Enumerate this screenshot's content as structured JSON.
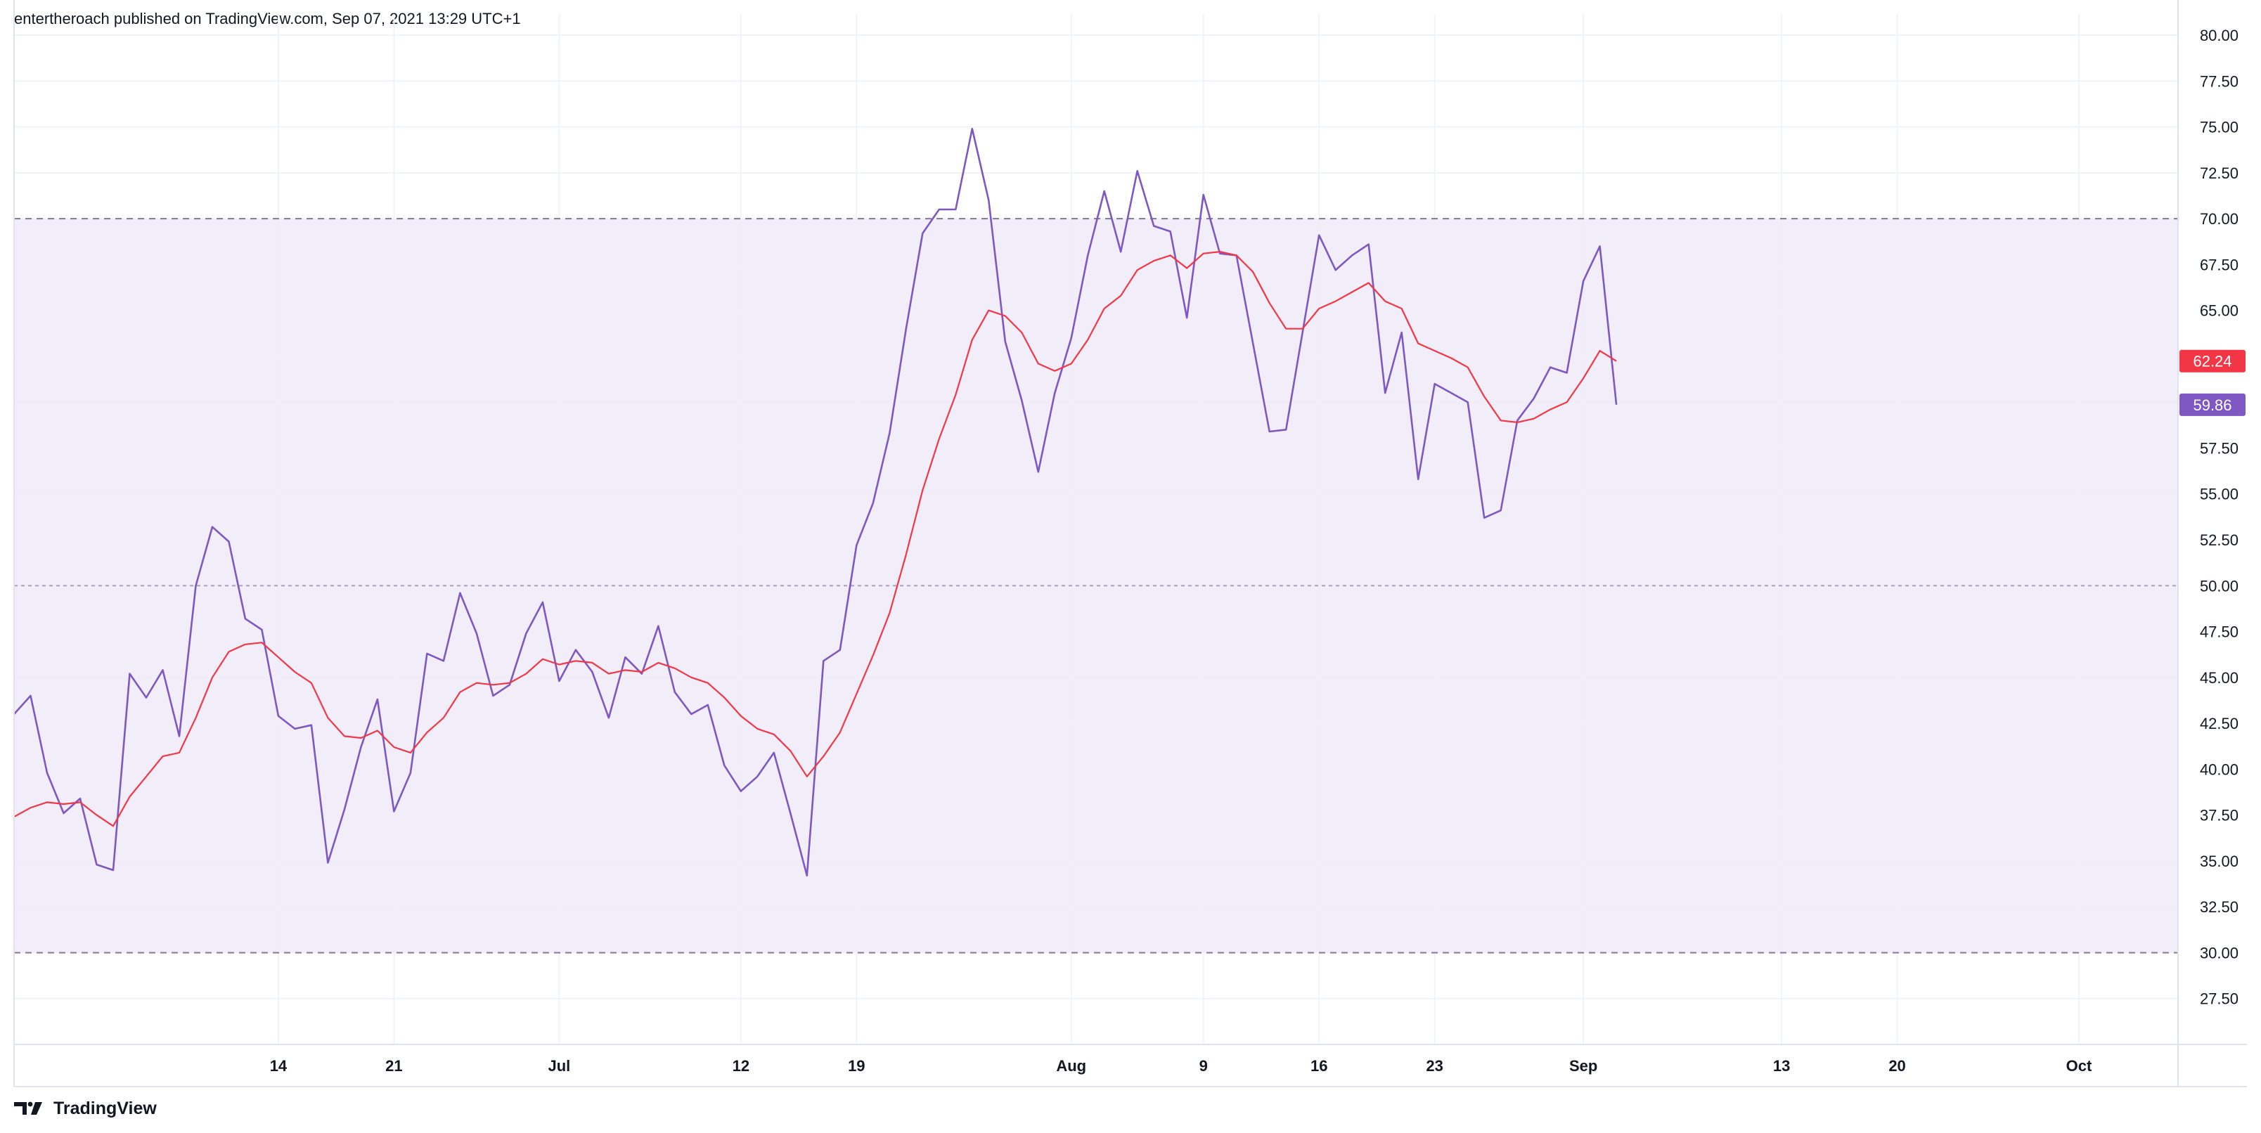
{
  "header": {
    "text": "entertheroach published on TradingView.com, Sep 07, 2021 13:29 UTC+1"
  },
  "footer": {
    "brand": "TradingView",
    "logo_icon": "tradingview-logo-icon"
  },
  "colors": {
    "rsi_line": "#7e57c2",
    "ma_line": "#f23645",
    "band_fill": "#f0ebf8",
    "band_line": "#7e6f94",
    "grid": "#f0f3fa",
    "axis": "#e0e3eb",
    "badge_rsi": "#7e57c2",
    "badge_ma": "#f23645"
  },
  "chart_data": {
    "type": "line",
    "title": "",
    "xlabel": "",
    "ylabel": "",
    "ylim": [
      25.0,
      80.0
    ],
    "y_ticks": [
      "27.50",
      "30.00",
      "32.50",
      "35.00",
      "37.50",
      "40.00",
      "42.50",
      "45.00",
      "47.50",
      "50.00",
      "52.50",
      "55.00",
      "57.50",
      "60.00",
      "62.50",
      "65.00",
      "67.50",
      "70.00",
      "72.50",
      "75.00",
      "77.50",
      "80.00"
    ],
    "x_ticks": [
      {
        "label": "14",
        "date": "2021-06-14"
      },
      {
        "label": "21",
        "date": "2021-06-21"
      },
      {
        "label": "Jul",
        "date": "2021-07-01"
      },
      {
        "label": "12",
        "date": "2021-07-12"
      },
      {
        "label": "19",
        "date": "2021-07-19"
      },
      {
        "label": "Aug",
        "date": "2021-08-01"
      },
      {
        "label": "9",
        "date": "2021-08-09"
      },
      {
        "label": "16",
        "date": "2021-08-16"
      },
      {
        "label": "23",
        "date": "2021-08-23"
      },
      {
        "label": "Sep",
        "date": "2021-09-01"
      },
      {
        "label": "13",
        "date": "2021-09-13"
      },
      {
        "label": "20",
        "date": "2021-09-20"
      },
      {
        "label": "Oct",
        "date": "2021-10-01"
      }
    ],
    "x_range": [
      "2021-05-29",
      "2021-10-07"
    ],
    "bands": {
      "upper": 70,
      "middle": 50,
      "lower": 30
    },
    "grid": true,
    "series": [
      {
        "kind": "rsi",
        "color": "#7e57c2",
        "last_value_label": "59.86",
        "points": [
          [
            "2021-05-29",
            43.0
          ],
          [
            "2021-05-30",
            44.0
          ],
          [
            "2021-05-31",
            39.8
          ],
          [
            "2021-06-01",
            37.6
          ],
          [
            "2021-06-02",
            38.4
          ],
          [
            "2021-06-03",
            34.8
          ],
          [
            "2021-06-04",
            34.5
          ],
          [
            "2021-06-05",
            45.2
          ],
          [
            "2021-06-06",
            43.9
          ],
          [
            "2021-06-07",
            45.4
          ],
          [
            "2021-06-08",
            41.8
          ],
          [
            "2021-06-09",
            50.0
          ],
          [
            "2021-06-10",
            53.2
          ],
          [
            "2021-06-11",
            52.4
          ],
          [
            "2021-06-12",
            48.2
          ],
          [
            "2021-06-13",
            47.6
          ],
          [
            "2021-06-14",
            42.9
          ],
          [
            "2021-06-15",
            42.2
          ],
          [
            "2021-06-16",
            42.4
          ],
          [
            "2021-06-17",
            34.9
          ],
          [
            "2021-06-18",
            37.8
          ],
          [
            "2021-06-19",
            41.2
          ],
          [
            "2021-06-20",
            43.8
          ],
          [
            "2021-06-21",
            37.7
          ],
          [
            "2021-06-22",
            39.8
          ],
          [
            "2021-06-23",
            46.3
          ],
          [
            "2021-06-24",
            45.9
          ],
          [
            "2021-06-25",
            49.6
          ],
          [
            "2021-06-26",
            47.4
          ],
          [
            "2021-06-27",
            44.0
          ],
          [
            "2021-06-28",
            44.6
          ],
          [
            "2021-06-29",
            47.4
          ],
          [
            "2021-06-30",
            49.1
          ],
          [
            "2021-07-01",
            44.8
          ],
          [
            "2021-07-02",
            46.5
          ],
          [
            "2021-07-03",
            45.3
          ],
          [
            "2021-07-04",
            42.8
          ],
          [
            "2021-07-05",
            46.1
          ],
          [
            "2021-07-06",
            45.2
          ],
          [
            "2021-07-07",
            47.8
          ],
          [
            "2021-07-08",
            44.2
          ],
          [
            "2021-07-09",
            43.0
          ],
          [
            "2021-07-10",
            43.5
          ],
          [
            "2021-07-11",
            40.2
          ],
          [
            "2021-07-12",
            38.8
          ],
          [
            "2021-07-13",
            39.6
          ],
          [
            "2021-07-14",
            40.9
          ],
          [
            "2021-07-15",
            37.6
          ],
          [
            "2021-07-16",
            34.2
          ],
          [
            "2021-07-17",
            45.9
          ],
          [
            "2021-07-18",
            46.5
          ],
          [
            "2021-07-19",
            52.2
          ],
          [
            "2021-07-20",
            54.5
          ],
          [
            "2021-07-21",
            58.3
          ],
          [
            "2021-07-22",
            64.0
          ],
          [
            "2021-07-23",
            69.2
          ],
          [
            "2021-07-24",
            70.5
          ],
          [
            "2021-07-25",
            70.5
          ],
          [
            "2021-07-26",
            74.9
          ],
          [
            "2021-07-27",
            71.0
          ],
          [
            "2021-07-28",
            63.3
          ],
          [
            "2021-07-29",
            60.1
          ],
          [
            "2021-07-30",
            56.2
          ],
          [
            "2021-07-31",
            60.5
          ],
          [
            "2021-08-01",
            63.5
          ],
          [
            "2021-08-02",
            68.0
          ],
          [
            "2021-08-03",
            71.5
          ],
          [
            "2021-08-04",
            68.2
          ],
          [
            "2021-08-05",
            72.6
          ],
          [
            "2021-08-06",
            69.6
          ],
          [
            "2021-08-07",
            69.3
          ],
          [
            "2021-08-08",
            64.6
          ],
          [
            "2021-08-09",
            71.3
          ],
          [
            "2021-08-10",
            68.1
          ],
          [
            "2021-08-11",
            68.0
          ],
          [
            "2021-08-12",
            63.2
          ],
          [
            "2021-08-13",
            58.4
          ],
          [
            "2021-08-14",
            58.5
          ],
          [
            "2021-08-15",
            63.8
          ],
          [
            "2021-08-16",
            69.1
          ],
          [
            "2021-08-17",
            67.2
          ],
          [
            "2021-08-18",
            68.0
          ],
          [
            "2021-08-19",
            68.6
          ],
          [
            "2021-08-20",
            60.5
          ],
          [
            "2021-08-21",
            63.8
          ],
          [
            "2021-08-22",
            55.8
          ],
          [
            "2021-08-23",
            61.0
          ],
          [
            "2021-08-24",
            60.5
          ],
          [
            "2021-08-25",
            60.0
          ],
          [
            "2021-08-26",
            53.7
          ],
          [
            "2021-08-27",
            54.1
          ],
          [
            "2021-08-28",
            59.0
          ],
          [
            "2021-08-29",
            60.2
          ],
          [
            "2021-08-30",
            61.9
          ],
          [
            "2021-08-31",
            61.6
          ],
          [
            "2021-09-01",
            66.6
          ],
          [
            "2021-09-02",
            68.5
          ],
          [
            "2021-09-03",
            59.86
          ]
        ]
      },
      {
        "kind": "rsi_moving_average",
        "color": "#f23645",
        "last_value_label": "62.24",
        "points": [
          [
            "2021-05-29",
            37.4
          ],
          [
            "2021-05-30",
            37.9
          ],
          [
            "2021-05-31",
            38.2
          ],
          [
            "2021-06-01",
            38.1
          ],
          [
            "2021-06-02",
            38.2
          ],
          [
            "2021-06-03",
            37.5
          ],
          [
            "2021-06-04",
            36.9
          ],
          [
            "2021-06-05",
            38.5
          ],
          [
            "2021-06-06",
            39.6
          ],
          [
            "2021-06-07",
            40.7
          ],
          [
            "2021-06-08",
            40.9
          ],
          [
            "2021-06-09",
            42.8
          ],
          [
            "2021-06-10",
            45.0
          ],
          [
            "2021-06-11",
            46.4
          ],
          [
            "2021-06-12",
            46.8
          ],
          [
            "2021-06-13",
            46.9
          ],
          [
            "2021-06-14",
            46.1
          ],
          [
            "2021-06-15",
            45.3
          ],
          [
            "2021-06-16",
            44.7
          ],
          [
            "2021-06-17",
            42.8
          ],
          [
            "2021-06-18",
            41.8
          ],
          [
            "2021-06-19",
            41.7
          ],
          [
            "2021-06-20",
            42.1
          ],
          [
            "2021-06-21",
            41.2
          ],
          [
            "2021-06-22",
            40.9
          ],
          [
            "2021-06-23",
            42.0
          ],
          [
            "2021-06-24",
            42.8
          ],
          [
            "2021-06-25",
            44.2
          ],
          [
            "2021-06-26",
            44.7
          ],
          [
            "2021-06-27",
            44.6
          ],
          [
            "2021-06-28",
            44.7
          ],
          [
            "2021-06-29",
            45.2
          ],
          [
            "2021-06-30",
            46.0
          ],
          [
            "2021-07-01",
            45.7
          ],
          [
            "2021-07-02",
            45.9
          ],
          [
            "2021-07-03",
            45.8
          ],
          [
            "2021-07-04",
            45.2
          ],
          [
            "2021-07-05",
            45.4
          ],
          [
            "2021-07-06",
            45.3
          ],
          [
            "2021-07-07",
            45.8
          ],
          [
            "2021-07-08",
            45.5
          ],
          [
            "2021-07-09",
            45.0
          ],
          [
            "2021-07-10",
            44.7
          ],
          [
            "2021-07-11",
            43.9
          ],
          [
            "2021-07-12",
            42.9
          ],
          [
            "2021-07-13",
            42.2
          ],
          [
            "2021-07-14",
            41.9
          ],
          [
            "2021-07-15",
            41.0
          ],
          [
            "2021-07-16",
            39.6
          ],
          [
            "2021-07-17",
            40.7
          ],
          [
            "2021-07-18",
            42.0
          ],
          [
            "2021-07-19",
            44.1
          ],
          [
            "2021-07-20",
            46.2
          ],
          [
            "2021-07-21",
            48.5
          ],
          [
            "2021-07-22",
            51.7
          ],
          [
            "2021-07-23",
            55.2
          ],
          [
            "2021-07-24",
            58.0
          ],
          [
            "2021-07-25",
            60.4
          ],
          [
            "2021-07-26",
            63.4
          ],
          [
            "2021-07-27",
            65.0
          ],
          [
            "2021-07-28",
            64.7
          ],
          [
            "2021-07-29",
            63.8
          ],
          [
            "2021-07-30",
            62.1
          ],
          [
            "2021-07-31",
            61.7
          ],
          [
            "2021-08-01",
            62.1
          ],
          [
            "2021-08-02",
            63.4
          ],
          [
            "2021-08-03",
            65.1
          ],
          [
            "2021-08-04",
            65.8
          ],
          [
            "2021-08-05",
            67.2
          ],
          [
            "2021-08-06",
            67.7
          ],
          [
            "2021-08-07",
            68.0
          ],
          [
            "2021-08-08",
            67.3
          ],
          [
            "2021-08-09",
            68.1
          ],
          [
            "2021-08-10",
            68.2
          ],
          [
            "2021-08-11",
            68.0
          ],
          [
            "2021-08-12",
            67.1
          ],
          [
            "2021-08-13",
            65.4
          ],
          [
            "2021-08-14",
            64.0
          ],
          [
            "2021-08-15",
            64.0
          ],
          [
            "2021-08-16",
            65.1
          ],
          [
            "2021-08-17",
            65.5
          ],
          [
            "2021-08-18",
            66.0
          ],
          [
            "2021-08-19",
            66.5
          ],
          [
            "2021-08-20",
            65.5
          ],
          [
            "2021-08-21",
            65.1
          ],
          [
            "2021-08-22",
            63.2
          ],
          [
            "2021-08-23",
            62.8
          ],
          [
            "2021-08-24",
            62.4
          ],
          [
            "2021-08-25",
            61.9
          ],
          [
            "2021-08-26",
            60.3
          ],
          [
            "2021-08-27",
            59.0
          ],
          [
            "2021-08-28",
            58.9
          ],
          [
            "2021-08-29",
            59.1
          ],
          [
            "2021-08-30",
            59.6
          ],
          [
            "2021-08-31",
            60.0
          ],
          [
            "2021-09-01",
            61.3
          ],
          [
            "2021-09-02",
            62.8
          ],
          [
            "2021-09-03",
            62.24
          ]
        ]
      }
    ]
  }
}
